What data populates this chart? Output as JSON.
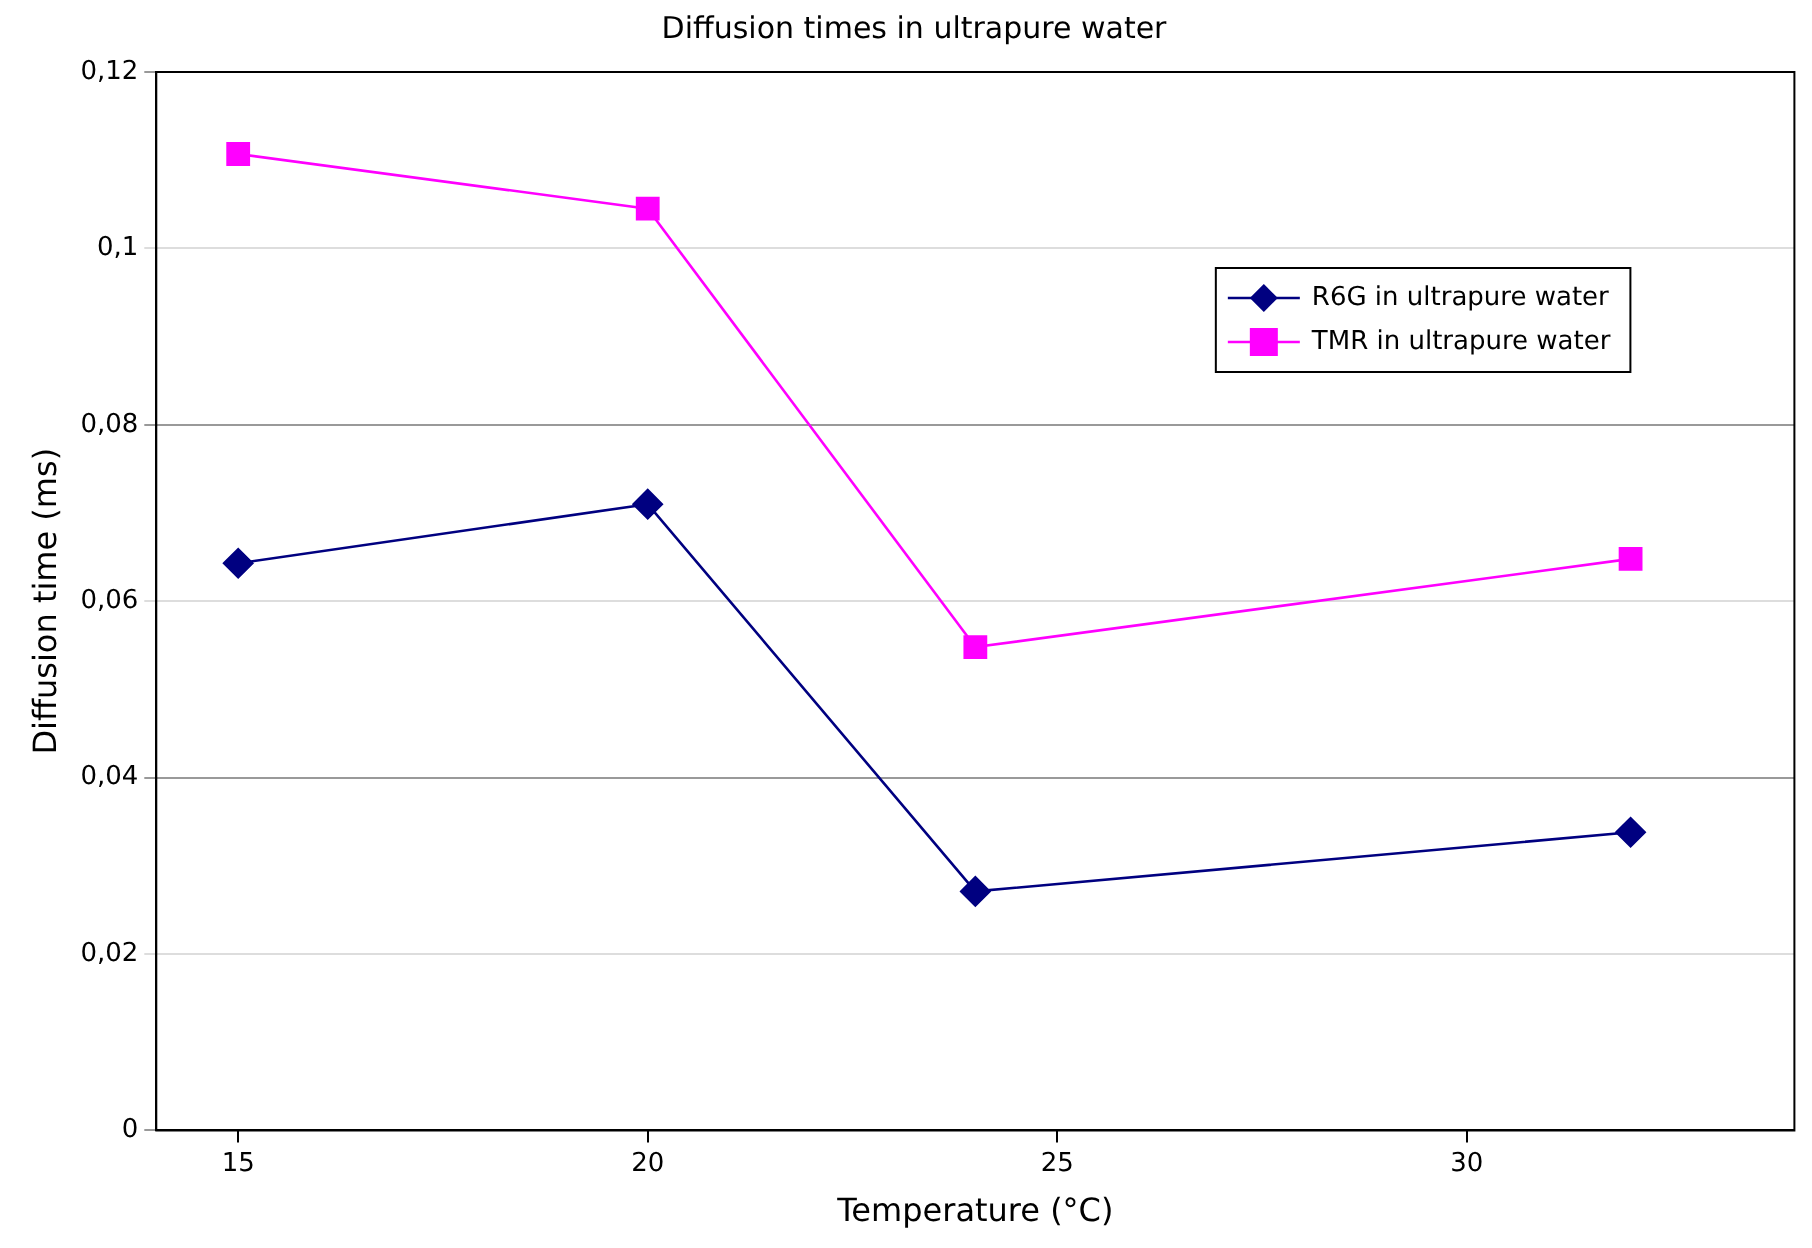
{
  "chart_data": {
    "type": "line",
    "title": "Diffusion times in ultrapure water",
    "xlabel": "Temperature (°C)",
    "ylabel": "Diffusion time (ms)",
    "x": [
      15,
      20,
      24,
      32
    ],
    "series": [
      {
        "name": "R6G in ultrapure water",
        "color": "#000080",
        "marker": "diamond",
        "values": [
          0.0643,
          0.071,
          0.0271,
          0.0338
        ]
      },
      {
        "name": "TMR in ultrapure water",
        "color": "#ff00ff",
        "marker": "square",
        "values": [
          0.1107,
          0.1045,
          0.0548,
          0.0648
        ]
      }
    ],
    "xlim": [
      14,
      34
    ],
    "xticks": [
      15,
      20,
      25,
      30
    ],
    "ylim": [
      0,
      0.12
    ],
    "yticks": [
      0,
      {
        "value": 0.02,
        "label": "0,02"
      },
      {
        "value": 0.04,
        "label": "0,04"
      },
      {
        "value": 0.06,
        "label": "0,06"
      },
      {
        "value": 0.08,
        "label": "0,08"
      },
      {
        "value": 0.1,
        "label": "0,1"
      },
      {
        "value": 0.12,
        "label": "0,12"
      }
    ],
    "grid": "y",
    "legend": "top right",
    "line_style": "solid"
  }
}
